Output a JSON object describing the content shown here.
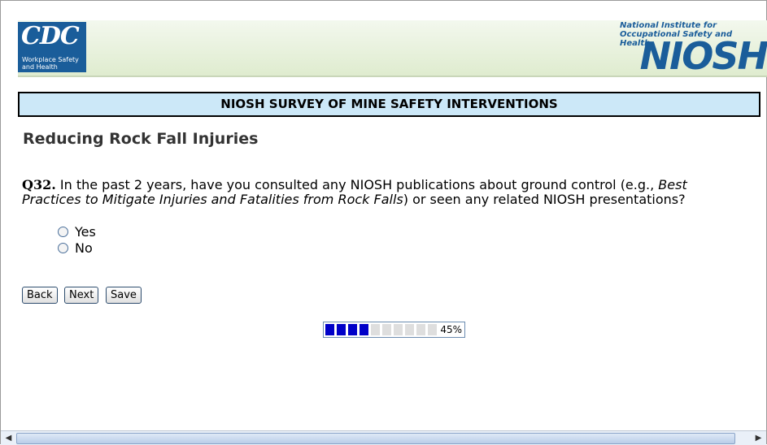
{
  "header": {
    "cdc_logo": "CDC",
    "cdc_tagline": "Workplace Safety and Health",
    "niosh_full_name": "National Institute for Occupational Safety and Health",
    "niosh_logo": "NIOSH"
  },
  "survey_title": "NIOSH SURVEY OF MINE SAFETY INTERVENTIONS",
  "section_heading": "Reducing Rock Fall Injuries",
  "question": {
    "number": "Q32.",
    "text_before": "In the past 2 years, have you consulted any NIOSH publications about ground control (e.g.,",
    "text_italic": "Best Practices to Mitigate Injuries and Fatalities from Rock Falls",
    "text_after": ") or seen any related NIOSH presentations?"
  },
  "options": [
    "Yes",
    "No"
  ],
  "buttons": [
    "Back",
    "Next",
    "Save"
  ],
  "progress": {
    "value": 45,
    "label": "45%"
  }
}
